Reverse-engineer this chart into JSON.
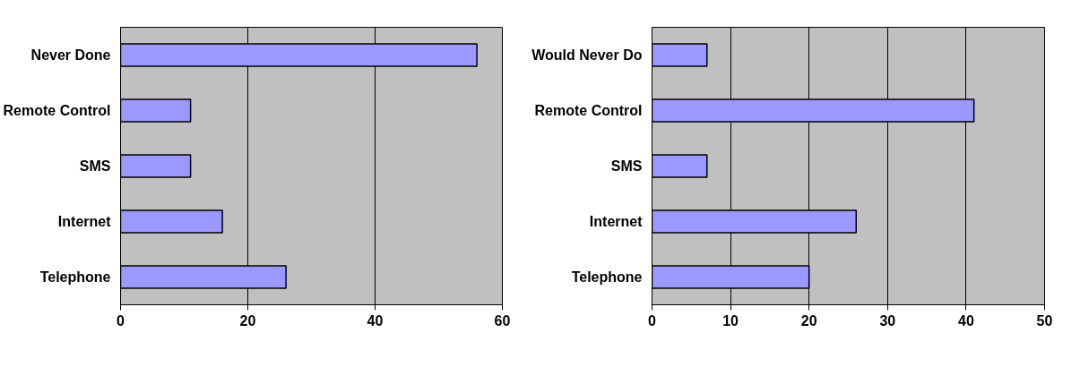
{
  "chart_data": [
    {
      "type": "bar",
      "orientation": "horizontal",
      "categories": [
        "Never Done",
        "Remote Control",
        "SMS",
        "Internet",
        "Telephone"
      ],
      "values": [
        56,
        11,
        11,
        16,
        26
      ],
      "color": "#9999ff",
      "xlim": [
        0,
        60
      ],
      "xticks": [
        0,
        20,
        40,
        60
      ],
      "grid": "x"
    },
    {
      "type": "bar",
      "orientation": "horizontal",
      "categories": [
        "Would Never Do",
        "Remote Control",
        "SMS",
        "Internet",
        "Telephone"
      ],
      "values": [
        7,
        41,
        7,
        26,
        20
      ],
      "color": "#9999ff",
      "xlim": [
        0,
        50
      ],
      "xticks": [
        0,
        10,
        20,
        30,
        40,
        50
      ],
      "grid": "x"
    }
  ]
}
